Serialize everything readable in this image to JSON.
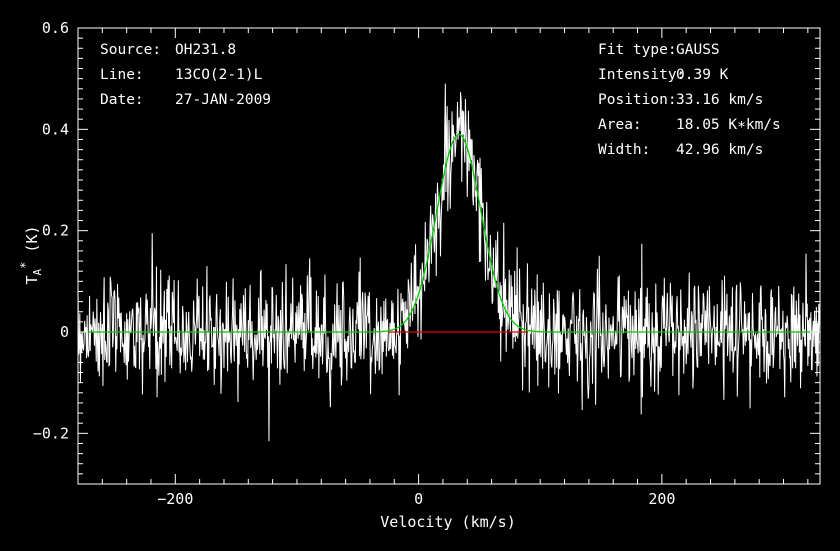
{
  "chart_data": {
    "type": "line",
    "xlabel": "Velocity (km/s)",
    "ylabel": {
      "main": "T",
      "sub": "A",
      "sup": "*",
      "unit": " (K)"
    },
    "xlim": [
      -280,
      330
    ],
    "ylim": [
      -0.3,
      0.6
    ],
    "x_ticks": [
      -200,
      0,
      200
    ],
    "y_ticks": [
      -0.2,
      0,
      0.2,
      0.4,
      0.6
    ],
    "x_tick_labels": [
      "−200",
      "0",
      "200"
    ],
    "y_tick_labels": [
      "−0.2",
      "0",
      "0.2",
      "0.4",
      "0.6"
    ],
    "noise_rms": 0.055,
    "grid": false,
    "colors": {
      "spectrum": "#ffffff",
      "fit": "#00cc00",
      "window": "#dd0000",
      "axes": "#ffffff"
    },
    "series": [
      {
        "kind": "spectrum",
        "x_range": [
          -280,
          330
        ],
        "channel_width": 0.5
      },
      {
        "kind": "gaussian-fit",
        "amplitude": 0.39,
        "center": 33.16,
        "fwhm": 42.96,
        "x_range": [
          -280,
          330
        ]
      },
      {
        "kind": "fit-window",
        "x_range": [
          -25,
          90
        ],
        "y": 0
      }
    ],
    "annotations": {
      "left": [
        {
          "label": "Source:",
          "value": "OH231.8"
        },
        {
          "label": "Line:",
          "value": "13CO(2-1)L"
        },
        {
          "label": "Date:",
          "value": "27-JAN-2009"
        }
      ],
      "right": [
        {
          "label": "Fit type:",
          "value": "GAUSS"
        },
        {
          "label": "Intensity:",
          "value": "0.39 K"
        },
        {
          "label": "Position:",
          "value": "33.16 km/s"
        },
        {
          "label": "Area:",
          "value": "18.05 K∗km/s"
        },
        {
          "label": "Width:",
          "value": "42.96 km/s"
        }
      ]
    }
  }
}
